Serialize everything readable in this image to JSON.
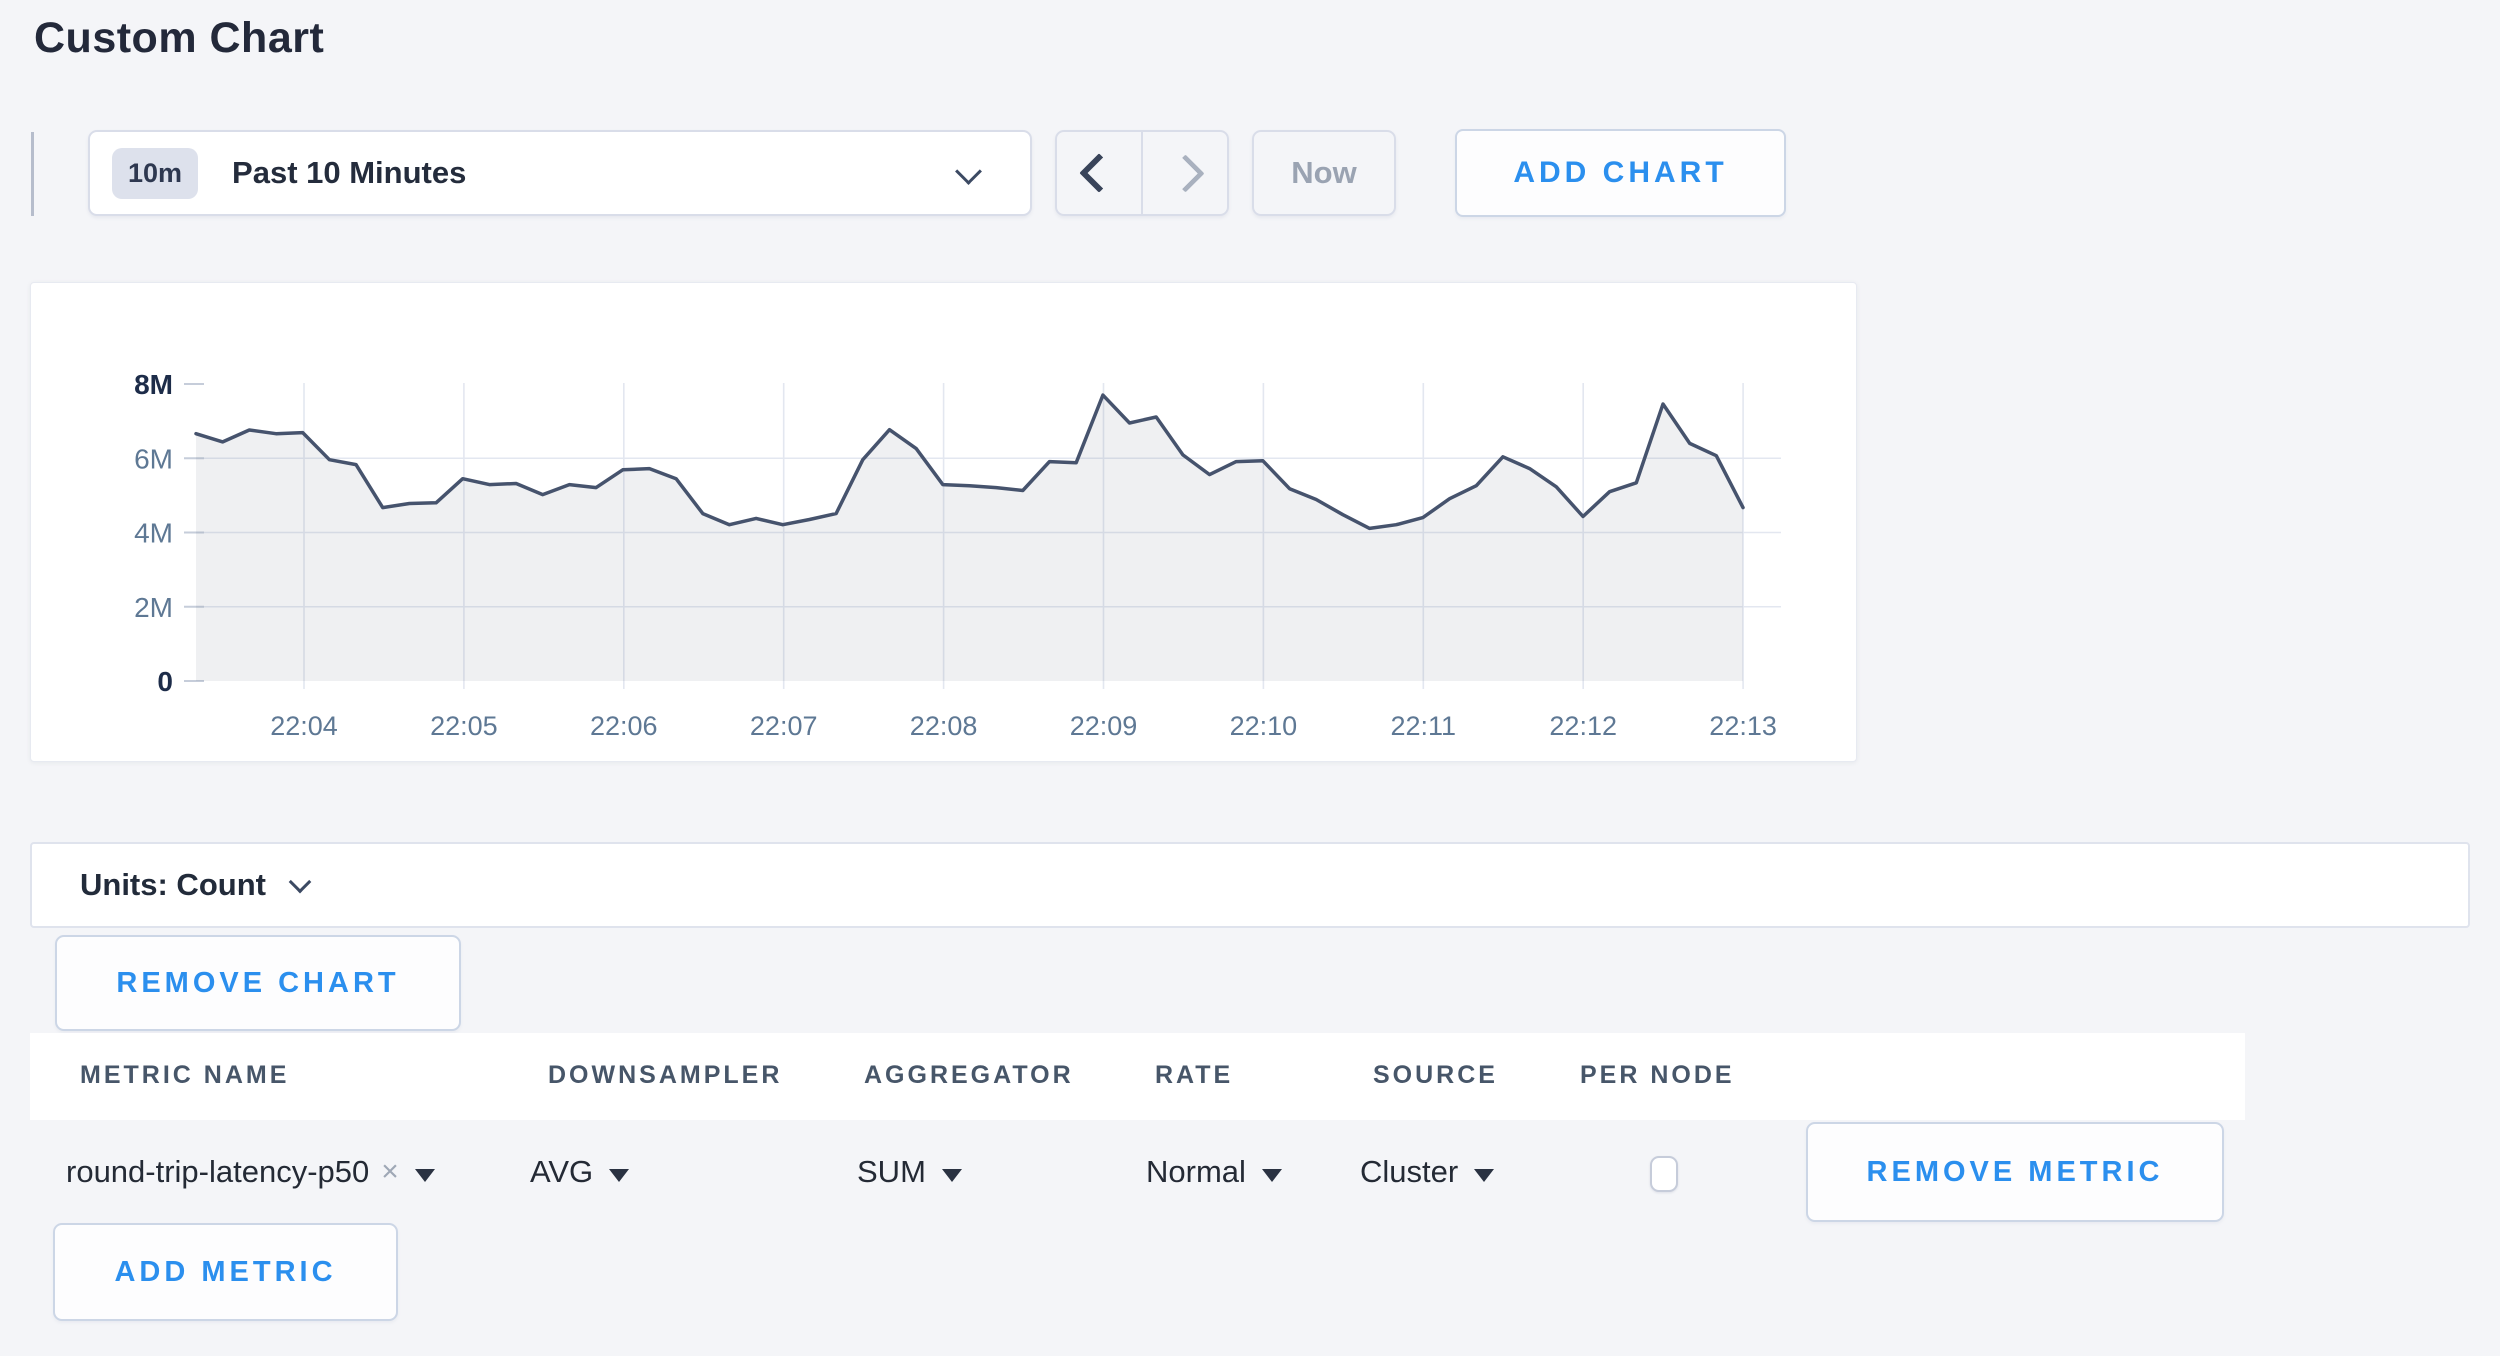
{
  "page": {
    "title": "Custom Chart"
  },
  "toolbar": {
    "range_badge": "10m",
    "range_label": "Past 10 Minutes",
    "prev_icon": "chevron-left",
    "next_icon": "chevron-right",
    "now_label": "Now",
    "add_chart_label": "ADD CHART"
  },
  "chart_data": {
    "type": "area",
    "title": "",
    "xlabel": "",
    "ylabel": "",
    "x_tick_labels": [
      "22:04",
      "22:05",
      "22:06",
      "22:07",
      "22:08",
      "22:09",
      "22:10",
      "22:11",
      "22:12",
      "22:13"
    ],
    "y_ticks_millions": [
      0,
      2,
      4,
      6,
      8
    ],
    "y_tick_labels": [
      "0",
      "2M",
      "4M",
      "6M",
      "8M"
    ],
    "ylim_millions": [
      0,
      8
    ],
    "grid": true,
    "legend": "none",
    "series": [
      {
        "name": "round-trip-latency-p50",
        "values_in": "millions",
        "values": [
          6.66,
          6.44,
          6.76,
          6.66,
          6.69,
          5.96,
          5.83,
          4.67,
          4.78,
          4.8,
          5.45,
          5.29,
          5.32,
          5.02,
          5.29,
          5.21,
          5.69,
          5.72,
          5.45,
          4.51,
          4.21,
          4.38,
          4.21,
          4.35,
          4.51,
          5.96,
          6.77,
          6.26,
          5.29,
          5.26,
          5.21,
          5.13,
          5.91,
          5.88,
          7.7,
          6.95,
          7.11,
          6.09,
          5.56,
          5.91,
          5.93,
          5.18,
          4.89,
          4.48,
          4.11,
          4.21,
          4.4,
          4.91,
          5.26,
          6.04,
          5.72,
          5.23,
          4.43,
          5.1,
          5.34,
          7.46,
          6.4,
          6.07,
          4.67
        ]
      }
    ],
    "colors": {
      "line": "#46536d",
      "fill": "rgba(70,83,109,0.085)",
      "grid": "#e3e7f0",
      "tick_label": "#5e7894",
      "tick_label_strong": "#1d2c49"
    }
  },
  "units_bar": {
    "label": "Units: Count"
  },
  "chart_actions": {
    "remove_chart_label": "REMOVE CHART"
  },
  "metrics_table": {
    "headers": [
      "METRIC NAME",
      "DOWNSAMPLER",
      "AGGREGATOR",
      "RATE",
      "SOURCE",
      "PER NODE"
    ],
    "rows": [
      {
        "metric_name": "round-trip-latency-p50",
        "clear_icon": "×",
        "downsampler": "AVG",
        "aggregator": "SUM",
        "rate": "Normal",
        "source": "Cluster",
        "per_node_checked": false,
        "remove_label": "REMOVE METRIC"
      }
    ],
    "add_metric_label": "ADD METRIC"
  },
  "colors": {
    "accent_blue": "#2b8fee",
    "page_bg": "#f4f5f8",
    "card_bg": "#ffffff",
    "border": "#d9dde9",
    "button_border": "#ccd6e6"
  }
}
